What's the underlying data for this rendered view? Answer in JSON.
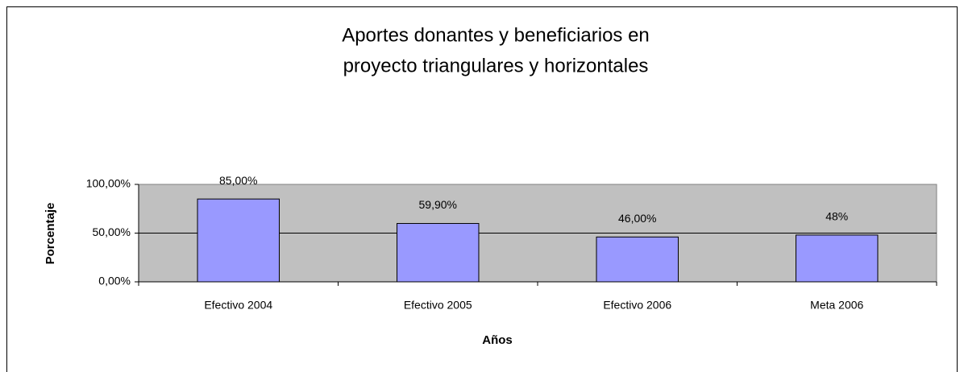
{
  "chart_data": {
    "type": "bar",
    "title": [
      "Aportes donantes y beneficiarios en",
      "proyecto triangulares  y  horizontales"
    ],
    "x_label": "Años",
    "y_label": "Porcentaje",
    "categories": [
      "Efectivo 2004",
      "Efectivo 2005",
      "Efectivo 2006",
      "Meta 2006"
    ],
    "values": [
      85,
      59.9,
      46,
      48
    ],
    "value_labels": [
      "85,00%",
      "59,90%",
      "46,00%",
      "48%"
    ],
    "color": "#9999ff",
    "ylim": [
      0,
      100
    ],
    "yticks": [
      {
        "value": 0,
        "label": "0,00%"
      },
      {
        "value": 50,
        "label": "50,00%"
      },
      {
        "value": 100,
        "label": "100,00%"
      }
    ],
    "grid": true
  }
}
